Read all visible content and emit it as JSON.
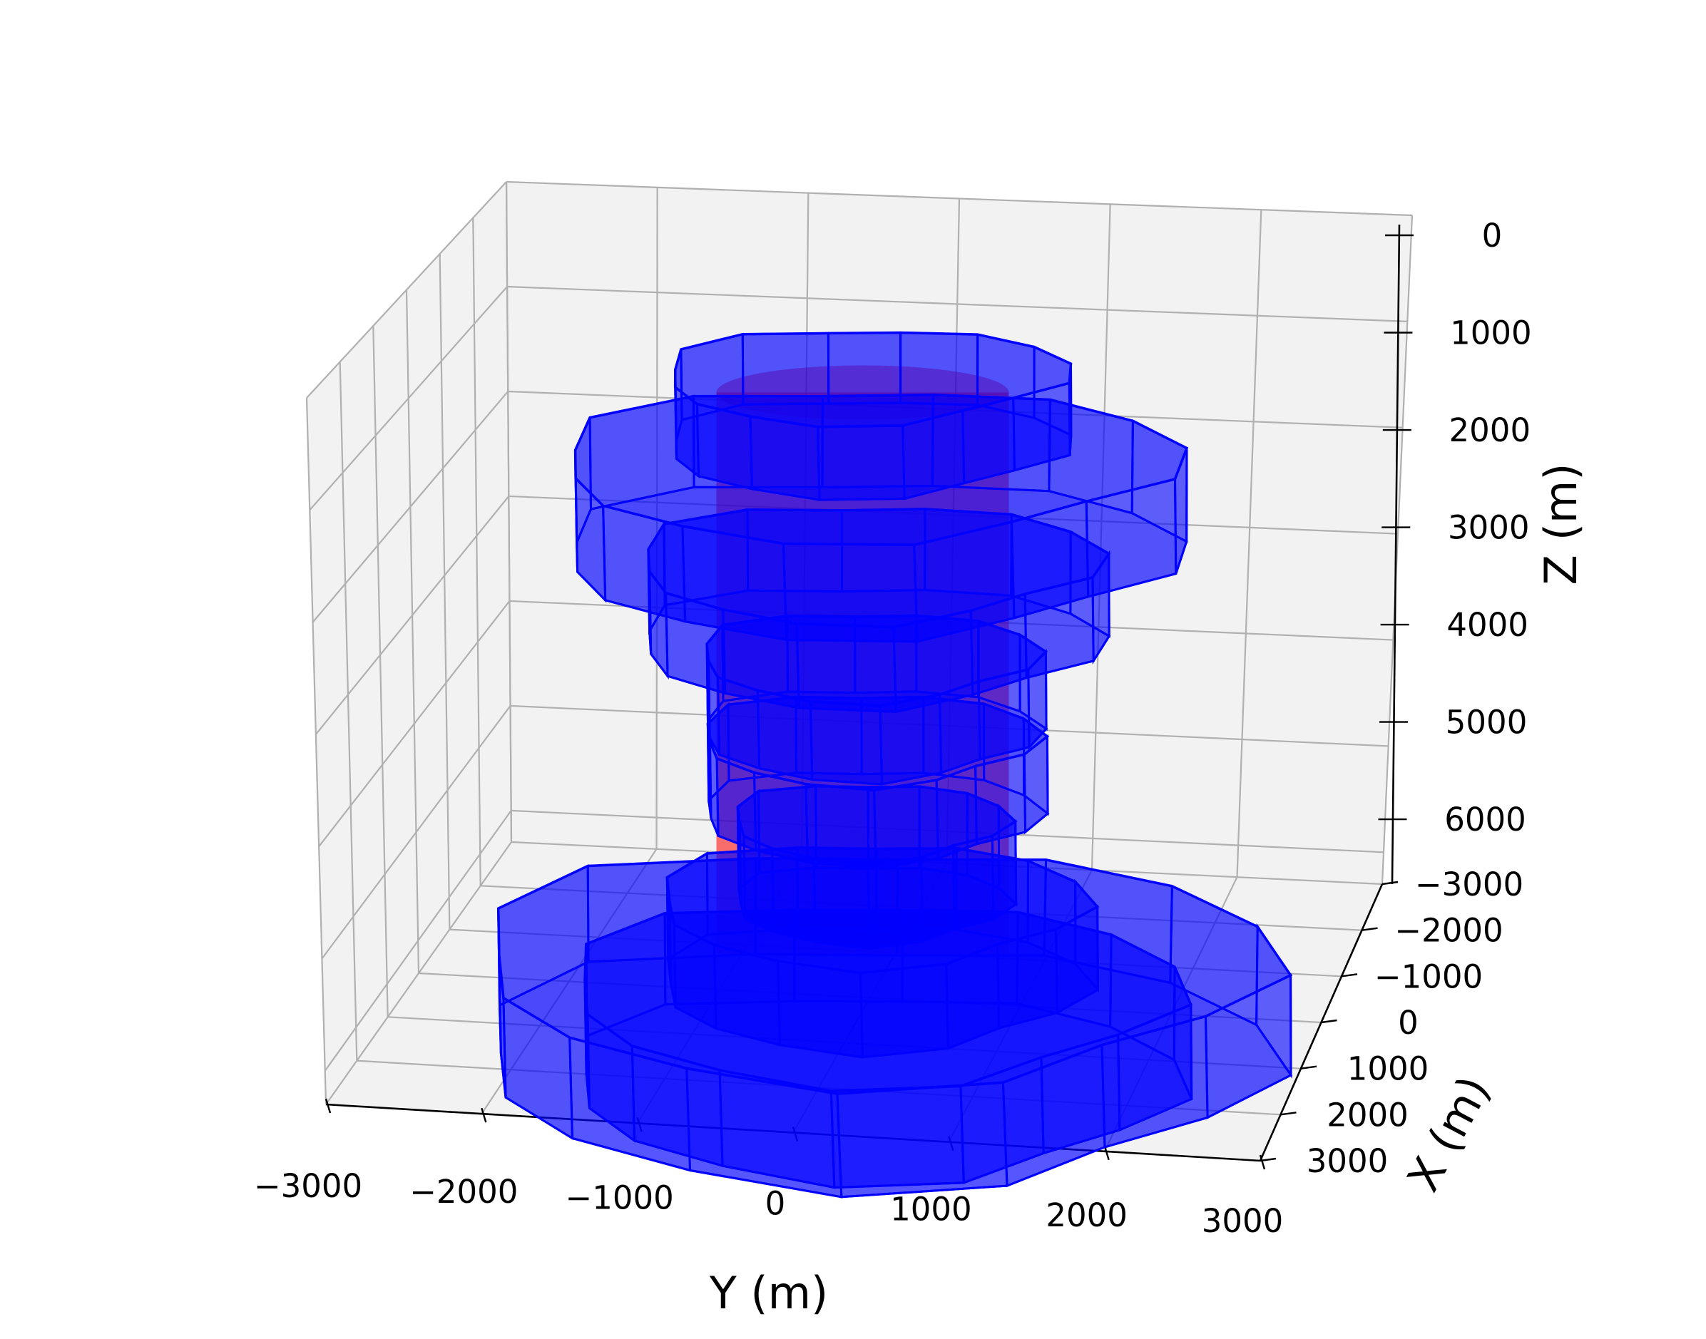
{
  "chart_data": {
    "type": "3d-volume",
    "xlabel": "X (m)",
    "ylabel": "Y (m)",
    "zlabel": "Z (m)",
    "x_ticks": [
      "3000",
      "2000",
      "1000",
      "0",
      "−1000",
      "−2000",
      "−3000"
    ],
    "y_ticks": [
      "−3000",
      "−2000",
      "−1000",
      "0",
      "1000",
      "2000",
      "3000"
    ],
    "z_ticks": [
      "0",
      "1000",
      "2000",
      "3000",
      "4000",
      "5000",
      "6000"
    ],
    "xlim": [
      -3000,
      3000
    ],
    "ylim": [
      -3000,
      3000
    ],
    "zlim": [
      6300,
      0
    ],
    "z_inverted": true,
    "grid": true,
    "colors": {
      "blocks": "#0000ff",
      "true_body": "#ff0000",
      "panes": "#f2f2f2",
      "grid": "#b0b0b0"
    },
    "true_body": {
      "shape": "cylinder",
      "radius_m": 900,
      "z_top_m": 800,
      "z_bottom_m": 5900
    },
    "series": [
      {
        "z_top": 650,
        "z_bottom": 1300,
        "radius": 1300
      },
      {
        "z_top": 1450,
        "z_bottom": 2300,
        "radius": 2000
      },
      {
        "z_top": 2350,
        "z_bottom": 3100,
        "radius": 1500
      },
      {
        "z_top": 3200,
        "z_bottom": 3900,
        "radius": 1100
      },
      {
        "z_top": 3950,
        "z_bottom": 4650,
        "radius": 1100
      },
      {
        "z_top": 4700,
        "z_bottom": 5450,
        "radius": 900
      },
      {
        "z_top": 5450,
        "z_bottom": 6200,
        "radius": 1400
      },
      {
        "z_top": 6000,
        "z_bottom": 6900,
        "radius": 2600
      },
      {
        "z_top": 6250,
        "z_bottom": 7100,
        "radius": 2000
      }
    ]
  }
}
